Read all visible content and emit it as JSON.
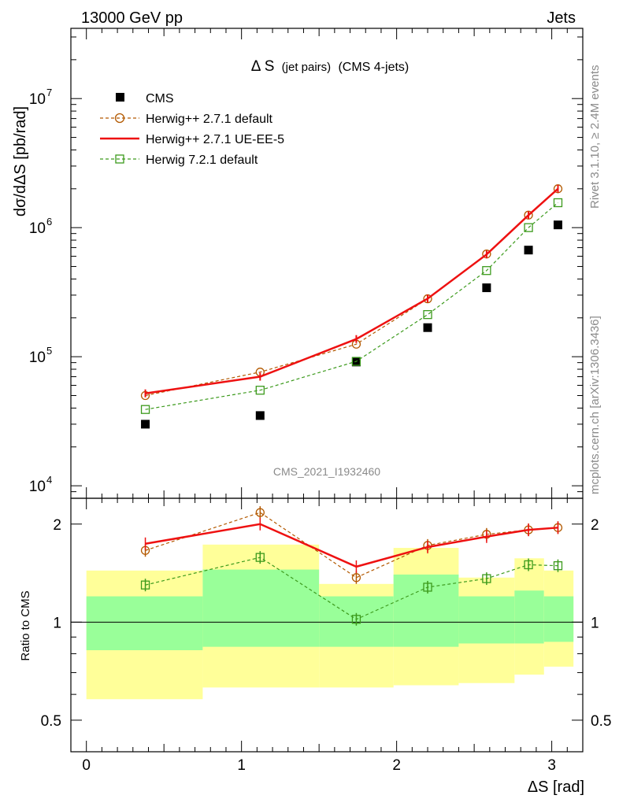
{
  "header": {
    "left": "13000 GeV pp",
    "right": "Jets"
  },
  "side_labels": {
    "rivet": "Rivet 3.1.10, ≥ 2.4M events",
    "mcplots": "mcplots.cern.ch [arXiv:1306.3436]"
  },
  "watermark": "CMS_2021_I1932460",
  "chart_data": [
    {
      "type": "scatter",
      "panel": "main",
      "title_main": "Δ S",
      "title_suffix_small": "(jet pairs)",
      "title_suffix": "(CMS 4-jets)",
      "ylabel": "dσ/dΔS [pb/rad]",
      "yscale": "log",
      "ylim": [
        8000,
        35000000
      ],
      "xlim": [
        -0.1,
        3.2
      ],
      "ytick_labels": [
        {
          "value": 10000,
          "base": "10",
          "exp": "4"
        },
        {
          "value": 100000,
          "base": "10",
          "exp": "5"
        },
        {
          "value": 1000000,
          "base": "10",
          "exp": "6"
        },
        {
          "value": 10000000,
          "base": "10",
          "exp": "7"
        }
      ],
      "legend_position": "top-left",
      "series": [
        {
          "name": "CMS",
          "style": "marker-square-filled",
          "color": "#000000",
          "x": [
            0.38,
            1.12,
            1.74,
            2.2,
            2.58,
            2.85,
            3.04
          ],
          "y": [
            30000,
            35000,
            91000,
            168000,
            342000,
            670000,
            1050000
          ]
        },
        {
          "name": "Herwig++ 2.7.1 default",
          "style": "dashed-circle",
          "color": "#b35900",
          "x": [
            0.38,
            1.12,
            1.74,
            2.2,
            2.58,
            2.85,
            3.04
          ],
          "y": [
            50000,
            76000,
            125000,
            281000,
            625000,
            1250000,
            2000000
          ]
        },
        {
          "name": "Herwig++ 2.7.1 UE-EE-5",
          "style": "solid",
          "color": "#ee1111",
          "x": [
            0.38,
            1.12,
            1.74,
            2.2,
            2.58,
            2.85,
            3.04
          ],
          "y": [
            52000,
            70000,
            137000,
            282000,
            620000,
            1250000,
            2000000
          ]
        },
        {
          "name": "Herwig 7.2.1 default",
          "style": "dashed-square",
          "color": "#3c9a1c",
          "x": [
            0.38,
            1.12,
            1.74,
            2.2,
            2.58,
            2.85,
            3.04
          ],
          "y": [
            39000,
            55000,
            92000,
            212000,
            465000,
            1000000,
            1560000
          ]
        }
      ]
    },
    {
      "type": "line",
      "panel": "ratio",
      "ylabel": "Ratio to CMS",
      "yscale": "log",
      "ylim": [
        0.4,
        2.4
      ],
      "xlim": [
        -0.1,
        3.2
      ],
      "xlabel": "ΔS [rad]",
      "xtick_labels": [
        "0",
        "1",
        "2",
        "3"
      ],
      "ytick_labels": [
        "0.5",
        "1",
        "2"
      ],
      "bands": {
        "bin_edges": [
          0.0,
          0.75,
          1.5,
          1.98,
          2.4,
          2.76,
          2.95,
          3.14
        ],
        "yellow_low": [
          0.58,
          0.63,
          0.63,
          0.64,
          0.65,
          0.69,
          0.73,
          0.74
        ],
        "yellow_high": [
          1.44,
          1.73,
          1.31,
          1.69,
          1.37,
          1.57,
          1.44,
          1.44
        ],
        "green_low": [
          0.82,
          0.84,
          0.84,
          0.84,
          0.86,
          0.86,
          0.87,
          0.87
        ],
        "green_high": [
          1.2,
          1.45,
          1.2,
          1.4,
          1.2,
          1.25,
          1.2,
          1.2
        ]
      },
      "series": [
        {
          "name": "Herwig++ 2.7.1 default",
          "style": "dashed-circle",
          "color": "#b35900",
          "x": [
            0.38,
            1.12,
            1.74,
            2.2,
            2.58,
            2.85,
            3.04
          ],
          "y": [
            1.66,
            2.17,
            1.37,
            1.72,
            1.86,
            1.92,
            1.95
          ]
        },
        {
          "name": "Herwig++ 2.7.1 UE-EE-5",
          "style": "solid",
          "color": "#ee1111",
          "x": [
            0.38,
            1.12,
            1.74,
            2.2,
            2.58,
            2.85,
            3.04
          ],
          "y": [
            1.74,
            2.0,
            1.48,
            1.7,
            1.83,
            1.92,
            1.95
          ]
        },
        {
          "name": "Herwig 7.2.1 default",
          "style": "dashed-square",
          "color": "#3c9a1c",
          "x": [
            0.38,
            1.12,
            1.74,
            2.2,
            2.58,
            2.85,
            3.04
          ],
          "y": [
            1.3,
            1.58,
            1.02,
            1.28,
            1.36,
            1.5,
            1.49
          ]
        }
      ]
    }
  ]
}
